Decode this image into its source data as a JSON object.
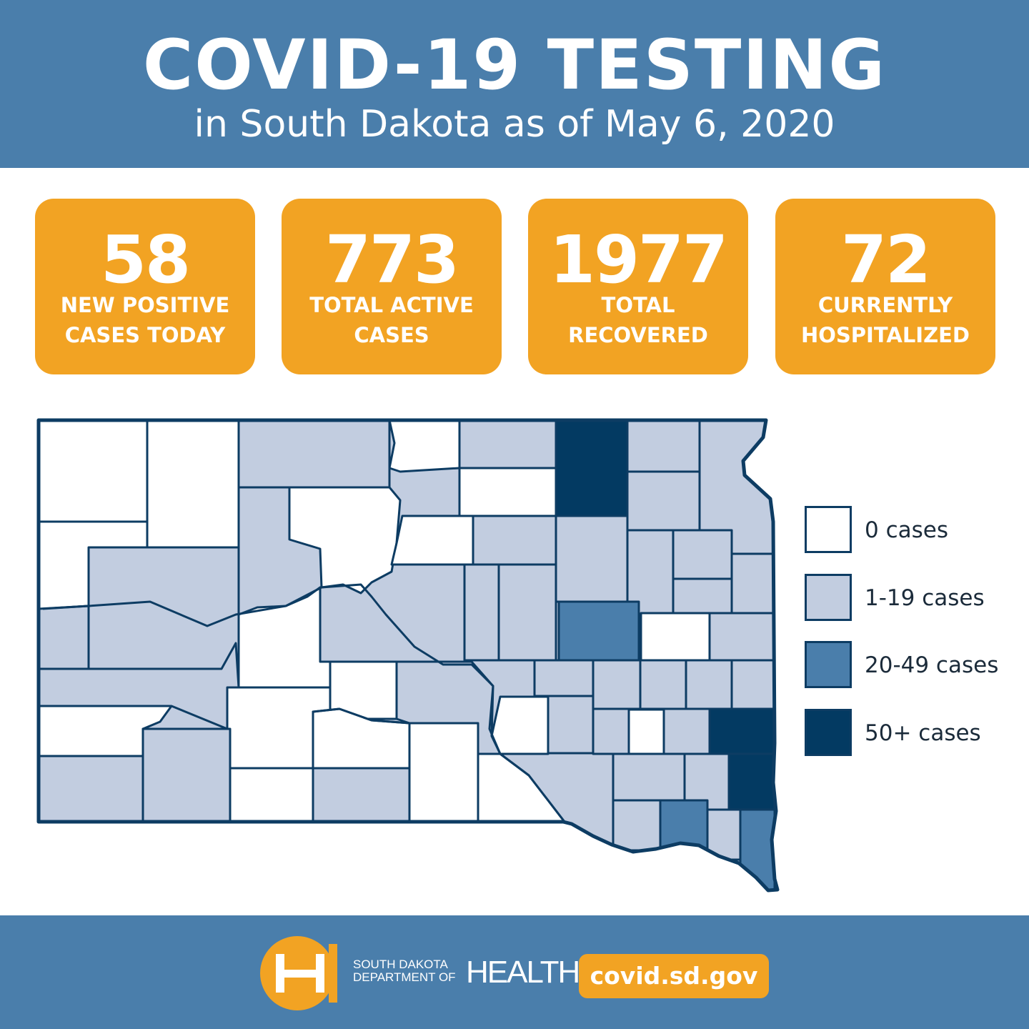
{
  "header": {
    "title": "COVID-19 TESTING",
    "subtitle": "in South Dakota as of May 6, 2020"
  },
  "stats": [
    {
      "value": "58",
      "label_line1": "NEW POSITIVE",
      "label_line2": "CASES TODAY"
    },
    {
      "value": "773",
      "label_line1": "TOTAL ACTIVE",
      "label_line2": "CASES"
    },
    {
      "value": "1977",
      "label_line1": "TOTAL",
      "label_line2": "RECOVERED"
    },
    {
      "value": "72",
      "label_line1": "CURRENTLY",
      "label_line2": "HOSPITALIZED"
    }
  ],
  "legend": [
    {
      "label": "0 cases",
      "color": "#ffffff"
    },
    {
      "label": "1-19 cases",
      "color": "#c2cde0"
    },
    {
      "label": "20-49 cases",
      "color": "#4a7eab"
    },
    {
      "label": "50+ cases",
      "color": "#033a62"
    }
  ],
  "colors": {
    "header_bg": "#4a7eab",
    "stat_bg": "#f2a323",
    "border": "#0d3c63"
  },
  "footer": {
    "logo_line1": "SOUTH DAKOTA",
    "logo_line2": "DEPARTMENT OF",
    "logo_health": "HEALTH",
    "url": "covid.sd.gov",
    "logo_icon": "sd-health-logo-icon"
  }
}
